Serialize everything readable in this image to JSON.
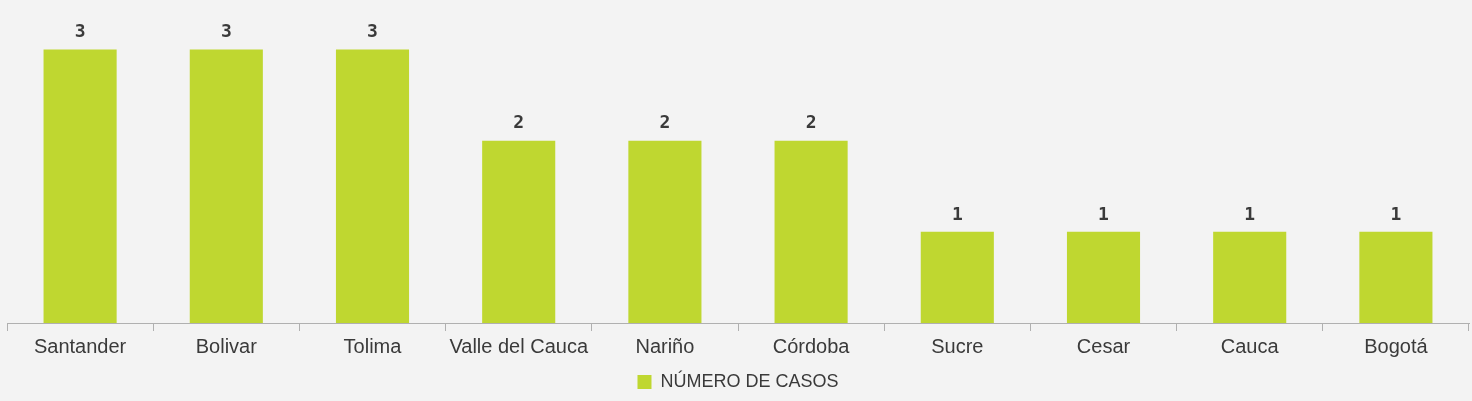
{
  "chart_data": {
    "type": "bar",
    "categories": [
      "Santander",
      "Bolivar",
      "Tolima",
      "Valle del Cauca",
      "Nariño",
      "Córdoba",
      "Sucre",
      "Cesar",
      "Cauca",
      "Bogotá"
    ],
    "series": [
      {
        "name": "NÚMERO DE CASOS",
        "color": "#bfd730",
        "values": [
          3,
          3,
          3,
          2,
          2,
          2,
          1,
          1,
          1,
          1
        ]
      }
    ],
    "tick_labels": "x",
    "data_labels": true,
    "grid": false,
    "legend": "bottom"
  }
}
